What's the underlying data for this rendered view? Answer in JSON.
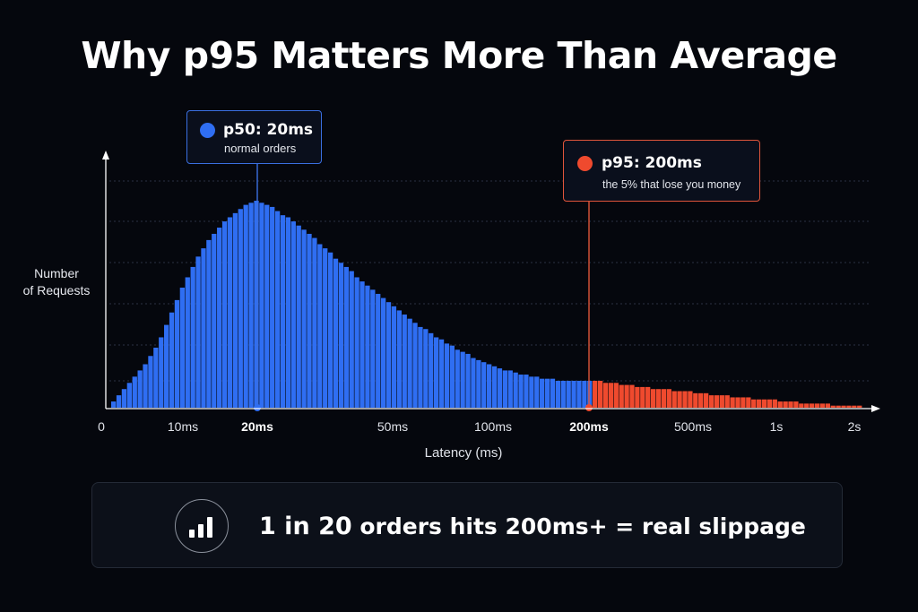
{
  "title": "Why p95 Matters More Than Average",
  "ylabel_line1": "Number",
  "ylabel_line2": "of Requests",
  "colors": {
    "normal": "#2f6ef2",
    "tail": "#ef4a2e",
    "background": "#05070d"
  },
  "callouts": {
    "p50": {
      "label": "p50: 20ms",
      "sub": "normal orders"
    },
    "p95": {
      "label": "p95: 200ms",
      "sub": "the 5% that lose you money"
    }
  },
  "banner": {
    "icon": "bar-chart-icon",
    "lead": "1 in 20",
    "rest": " orders hits 200ms+ = real slippage"
  },
  "chart_data": {
    "type": "bar",
    "title": "Why p95 Matters More Than Average",
    "xlabel": "Latency (ms)",
    "ylabel": "Number of Requests",
    "x_scale": "log",
    "x_ticks": [
      {
        "label": "0",
        "ms": 0
      },
      {
        "label": "10ms",
        "ms": 10
      },
      {
        "label": "20ms",
        "ms": 20,
        "emphasis": true
      },
      {
        "label": "50ms",
        "ms": 50
      },
      {
        "label": "100ms",
        "ms": 100
      },
      {
        "label": "200ms",
        "ms": 200,
        "emphasis": true
      },
      {
        "label": "500ms",
        "ms": 500
      },
      {
        "label": "1s",
        "ms": 1000
      },
      {
        "label": "2s",
        "ms": 2000
      }
    ],
    "markers": [
      {
        "name": "p50",
        "ms": 20
      },
      {
        "name": "p95",
        "ms": 200
      }
    ],
    "grid": true,
    "ylim": [
      0,
      100
    ],
    "tail_threshold_ms": 200,
    "histogram_heights": [
      3,
      6,
      9,
      12,
      15,
      18,
      21,
      25,
      29,
      34,
      40,
      46,
      52,
      58,
      63,
      68,
      73,
      77,
      81,
      84,
      87,
      90,
      92,
      94,
      96,
      98,
      99,
      100,
      99,
      98,
      97,
      95,
      93,
      92,
      90,
      88,
      86,
      84,
      82,
      79,
      77,
      75,
      72,
      70,
      68,
      66,
      63,
      61,
      59,
      57,
      55,
      53,
      51,
      49,
      47,
      45,
      43,
      41,
      39,
      38,
      36,
      34,
      33,
      31,
      30,
      28,
      27,
      26,
      24,
      23,
      22,
      21,
      20,
      19,
      18,
      18,
      17,
      16,
      16,
      15,
      15,
      14,
      14,
      14,
      13,
      13,
      13,
      13,
      13,
      13,
      13,
      13,
      13,
      12,
      12,
      12,
      11,
      11,
      11,
      10,
      10,
      10,
      9,
      9,
      9,
      9,
      8,
      8,
      8,
      8,
      7,
      7,
      7,
      6,
      6,
      6,
      6,
      5,
      5,
      5,
      5,
      4,
      4,
      4,
      4,
      4,
      3,
      3,
      3,
      3,
      2,
      2,
      2,
      2,
      2,
      2,
      1,
      1,
      1,
      1,
      1,
      1
    ]
  }
}
